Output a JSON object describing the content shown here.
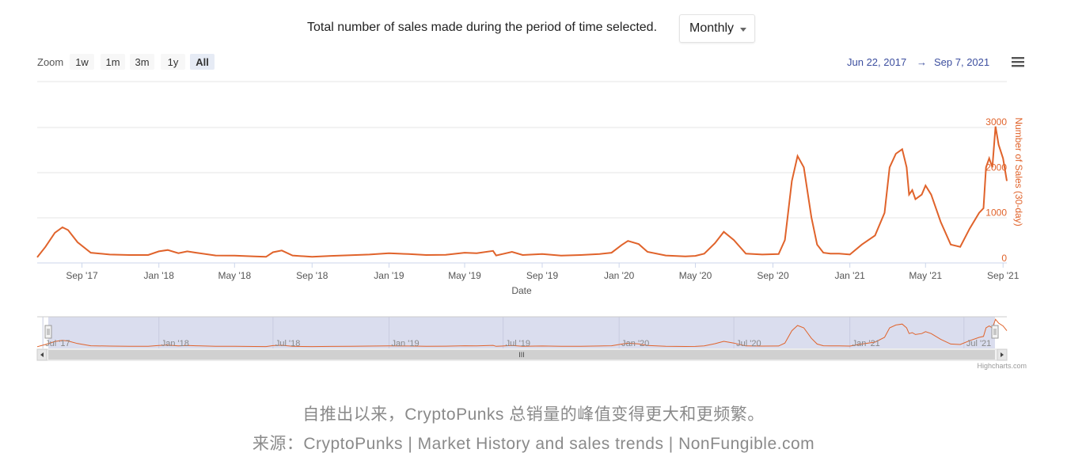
{
  "header": {
    "description": "Total number of sales made during the period of time selected.",
    "period_select": {
      "value": "Monthly"
    }
  },
  "range_selector": {
    "zoom_label": "Zoom",
    "buttons": [
      "1w",
      "1m",
      "3m",
      "1y",
      "All"
    ],
    "selected": "All",
    "from": "Jun 22, 2017",
    "arrow": "→",
    "to": "Sep 7, 2021"
  },
  "menu_icon": "hamburger-menu-icon",
  "credits": "Highcharts.com",
  "colors": {
    "series": "#e0632b",
    "axis_right": "#e0632b",
    "navigator_mask": "#d6d9ec",
    "range_text": "#3d4f9f"
  },
  "captions": {
    "line1": "自推出以来，CryptoPunks 总销量的峰值变得更大和更频繁。",
    "line2": "来源：CryptoPunks | Market History and sales trends | NonFungible.com"
  },
  "chart_data": {
    "type": "line",
    "xlabel": "Date",
    "ylabel": "Number of Sales (30-day)",
    "ylim": [
      0,
      3000
    ],
    "yticks": [
      0,
      1000,
      2000,
      3000
    ],
    "xticks": [
      "Sep '17",
      "Jan '18",
      "May '18",
      "Sep '18",
      "Jan '19",
      "May '19",
      "Sep '19",
      "Jan '20",
      "May '20",
      "Sep '20",
      "Jan '21",
      "May '21",
      "Sep '21"
    ],
    "navigator_ticks": [
      "Jul '17",
      "Jan '18",
      "Jul '18",
      "Jan '19",
      "Jul '19",
      "Jan '20",
      "Jul '20",
      "Jan '21",
      "Jul '21"
    ],
    "grid": true,
    "legend": "none",
    "series": [
      {
        "x": [
          "2017-06-22",
          "2017-07-05",
          "2017-07-20",
          "2017-08-01",
          "2017-08-10",
          "2017-08-25",
          "2017-09-15",
          "2017-10-15",
          "2017-11-15",
          "2017-12-15",
          "2018-01-01",
          "2018-01-15",
          "2018-02-01",
          "2018-02-15",
          "2018-03-01",
          "2018-04-01",
          "2018-05-01",
          "2018-06-01",
          "2018-06-20",
          "2018-07-01",
          "2018-07-15",
          "2018-08-01",
          "2018-09-01",
          "2018-10-01",
          "2018-11-01",
          "2018-12-01",
          "2019-01-01",
          "2019-02-01",
          "2019-03-01",
          "2019-04-01",
          "2019-05-01",
          "2019-05-20",
          "2019-06-15",
          "2019-06-20",
          "2019-07-15",
          "2019-08-01",
          "2019-09-01",
          "2019-10-01",
          "2019-11-01",
          "2019-12-01",
          "2019-12-20",
          "2020-01-05",
          "2020-01-15",
          "2020-02-01",
          "2020-02-15",
          "2020-03-15",
          "2020-04-15",
          "2020-05-01",
          "2020-05-15",
          "2020-06-01",
          "2020-06-15",
          "2020-07-01",
          "2020-07-20",
          "2020-08-15",
          "2020-09-10",
          "2020-09-20",
          "2020-10-01",
          "2020-10-10",
          "2020-10-20",
          "2020-11-01",
          "2020-11-10",
          "2020-11-20",
          "2020-12-01",
          "2020-12-15",
          "2021-01-01",
          "2021-01-20",
          "2021-02-10",
          "2021-02-25",
          "2021-03-05",
          "2021-03-15",
          "2021-03-25",
          "2021-04-01",
          "2021-04-05",
          "2021-04-10",
          "2021-04-15",
          "2021-04-25",
          "2021-05-01",
          "2021-05-10",
          "2021-05-25",
          "2021-06-10",
          "2021-06-25",
          "2021-07-10",
          "2021-07-25",
          "2021-08-01",
          "2021-08-05",
          "2021-08-10",
          "2021-08-15",
          "2021-08-20",
          "2021-08-25",
          "2021-09-01",
          "2021-09-07"
        ],
        "values": [
          20,
          250,
          560,
          680,
          620,
          350,
          120,
          80,
          70,
          70,
          150,
          180,
          110,
          150,
          120,
          60,
          55,
          40,
          30,
          130,
          170,
          60,
          30,
          50,
          65,
          80,
          110,
          90,
          70,
          75,
          120,
          110,
          160,
          60,
          140,
          70,
          90,
          55,
          70,
          90,
          120,
          290,
          380,
          310,
          140,
          60,
          40,
          50,
          100,
          330,
          580,
          400,
          100,
          80,
          90,
          400,
          1700,
          2250,
          2000,
          900,
          300,
          120,
          100,
          100,
          80,
          300,
          500,
          1000,
          2000,
          2300,
          2400,
          2000,
          1400,
          1500,
          1300,
          1400,
          1600,
          1400,
          800,
          300,
          250,
          650,
          1000,
          1100,
          2000,
          2200,
          2000,
          2900,
          2500,
          2200,
          1700
        ]
      }
    ]
  }
}
